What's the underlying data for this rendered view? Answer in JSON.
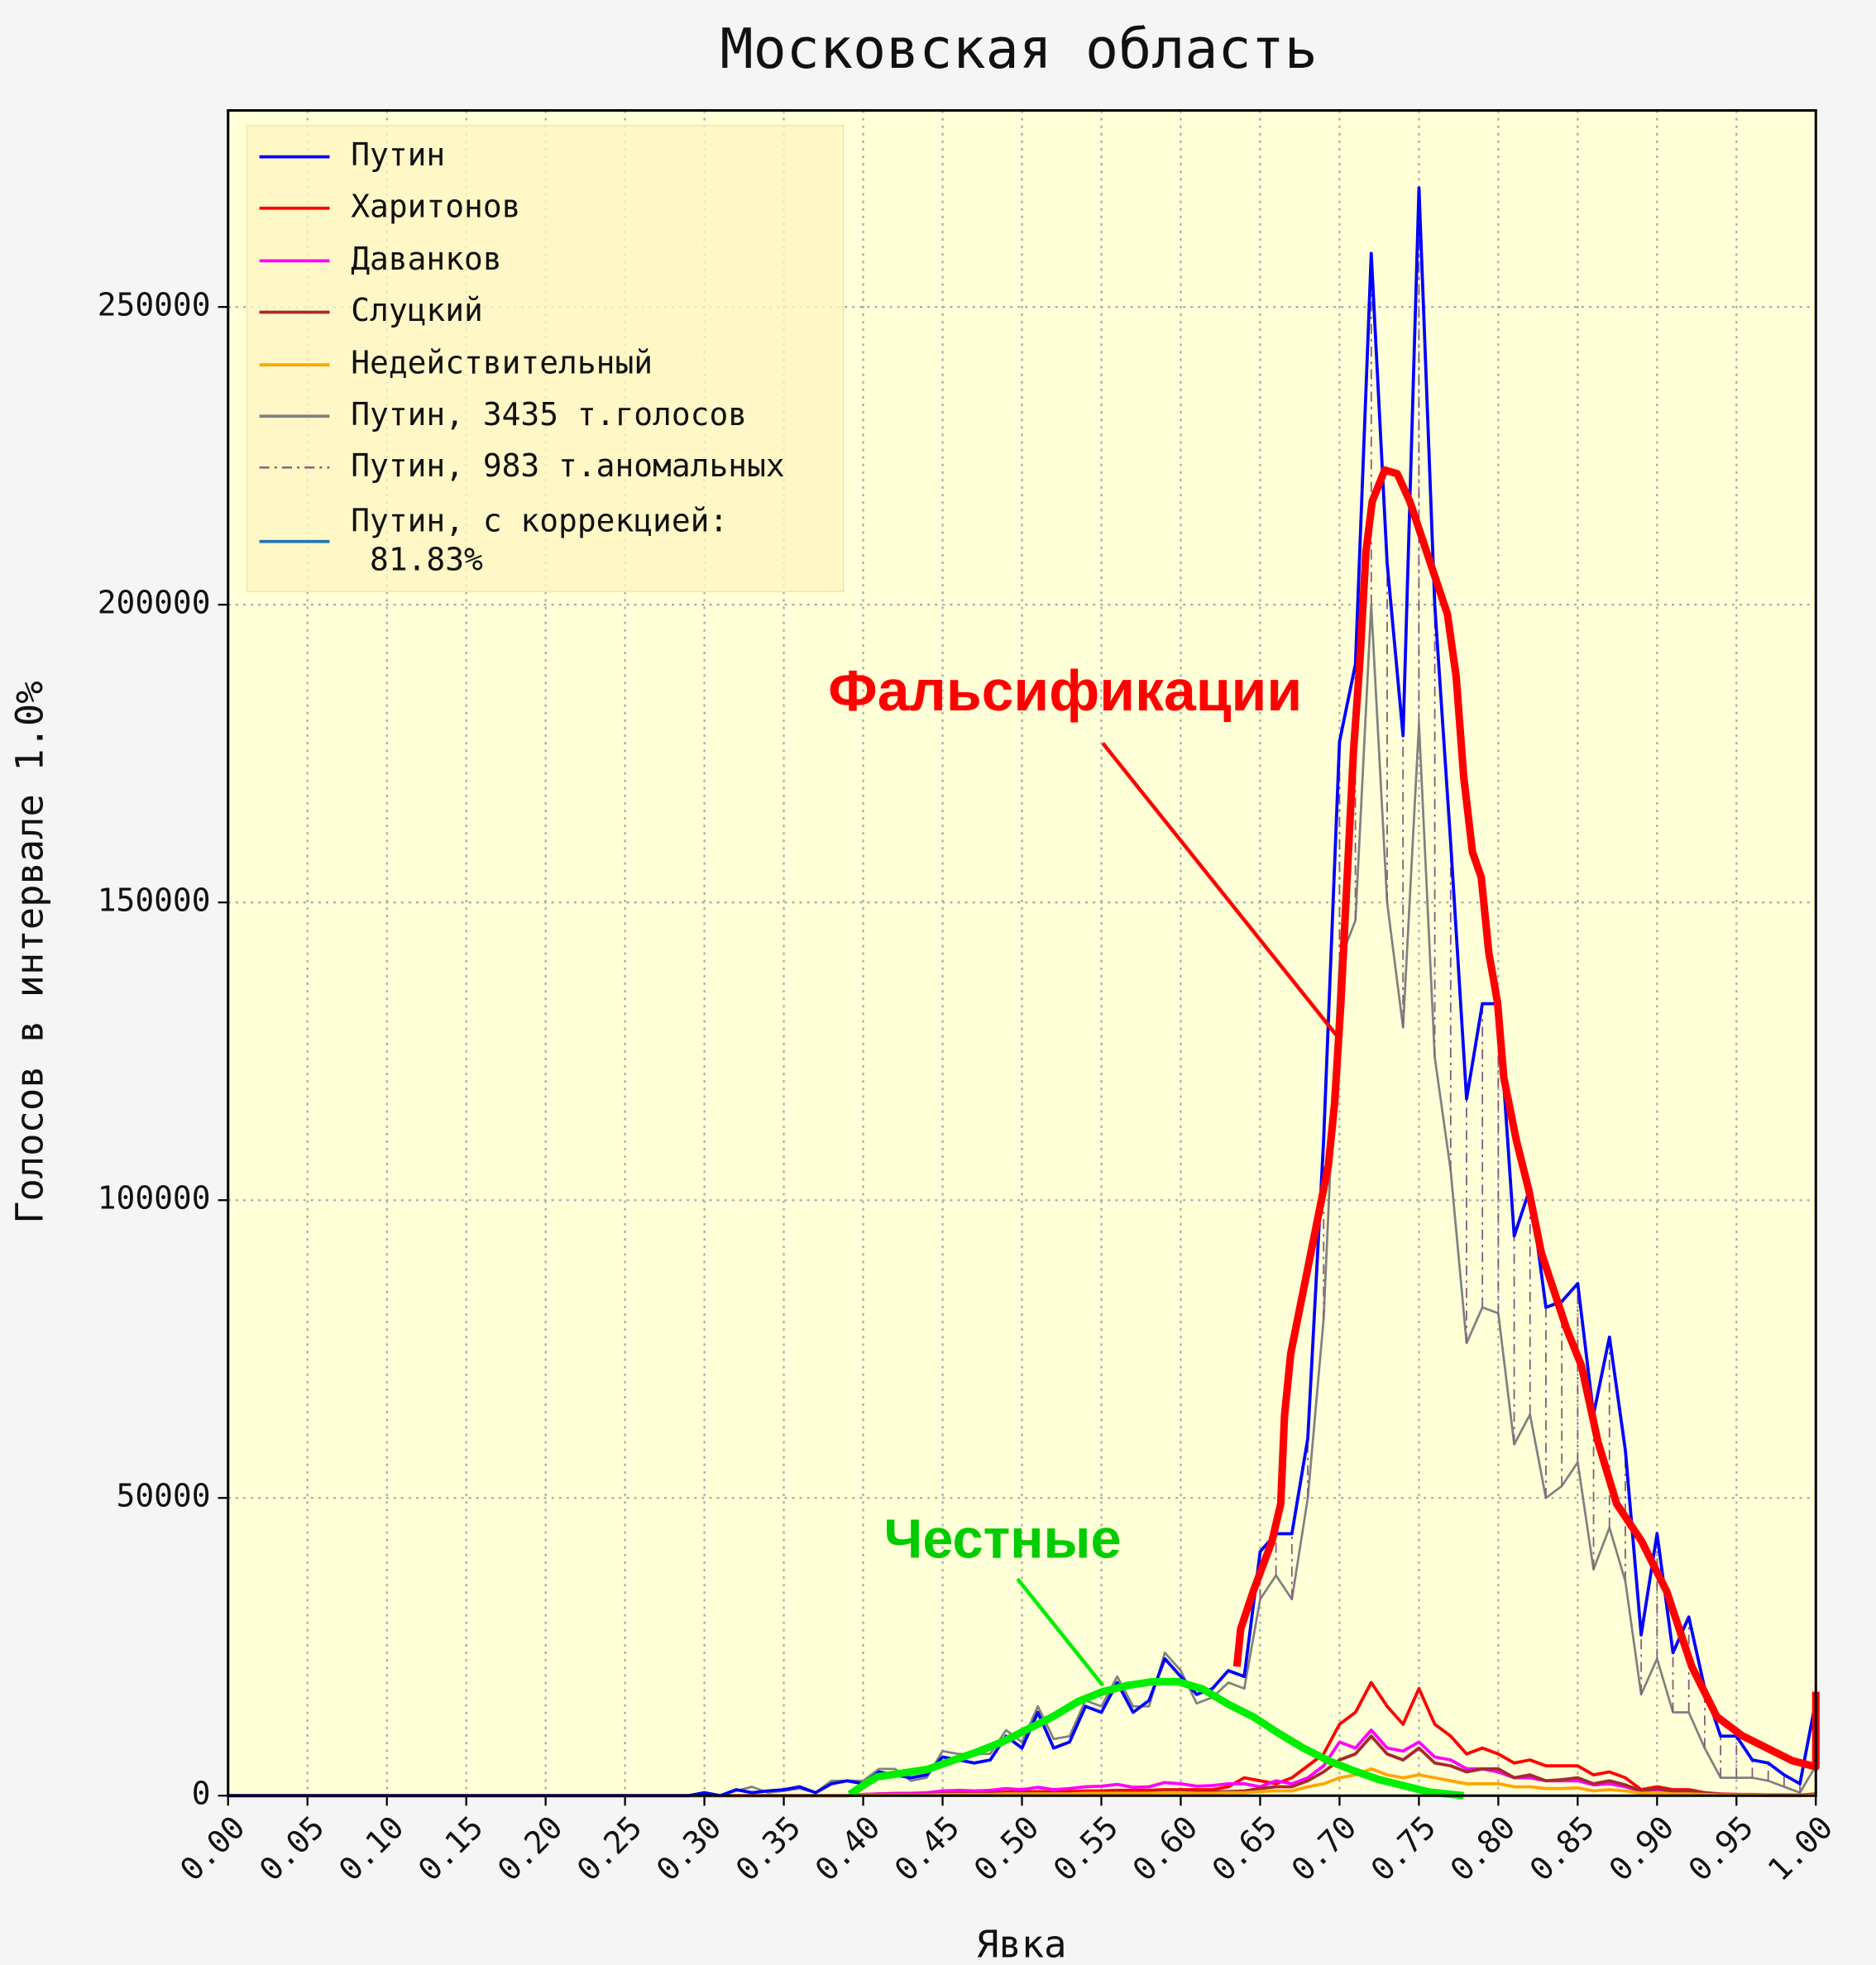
{
  "chart_data": {
    "type": "line",
    "title": "Московская область",
    "xlabel": "Явка",
    "ylabel": "Голосов в интервале 1.0%",
    "x": [
      0,
      0.29,
      0.3,
      0.31,
      0.32,
      0.33,
      0.34,
      0.35,
      0.36,
      0.37,
      0.38,
      0.39,
      0.4,
      0.41,
      0.42,
      0.43,
      0.44,
      0.45,
      0.46,
      0.47,
      0.48,
      0.49,
      0.5,
      0.51,
      0.52,
      0.53,
      0.54,
      0.55,
      0.56,
      0.57,
      0.58,
      0.59,
      0.6,
      0.61,
      0.62,
      0.63,
      0.64,
      0.65,
      0.66,
      0.67,
      0.68,
      0.69,
      0.7,
      0.71,
      0.72,
      0.73,
      0.74,
      0.75,
      0.76,
      0.77,
      0.78,
      0.79,
      0.8,
      0.81,
      0.82,
      0.83,
      0.84,
      0.85,
      0.86,
      0.87,
      0.88,
      0.89,
      0.9,
      0.91,
      0.92,
      0.93,
      0.94,
      0.95,
      0.96,
      0.97,
      0.98,
      0.99,
      1.0
    ],
    "series": [
      {
        "name": "Путин",
        "color": "#0000ff",
        "width": 2.5,
        "style": "solid",
        "values": [
          0,
          0,
          500,
          0,
          1000,
          500,
          800,
          1000,
          1500,
          500,
          2000,
          2500,
          2000,
          4000,
          3500,
          3000,
          3500,
          6500,
          6000,
          5500,
          6000,
          10000,
          8000,
          14000,
          8000,
          9000,
          15000,
          14000,
          19000,
          14000,
          16000,
          23000,
          20000,
          17000,
          18000,
          21000,
          20000,
          41000,
          44000,
          44000,
          60000,
          110000,
          177000,
          190000,
          259000,
          207000,
          178000,
          270000,
          200000,
          160000,
          117000,
          133000,
          133000,
          94000,
          102000,
          82000,
          83000,
          86000,
          64000,
          77000,
          58000,
          27000,
          44000,
          24000,
          30000,
          18000,
          10000,
          10000,
          6000,
          5500,
          3500,
          2000,
          16000
        ]
      },
      {
        "name": "Харитонов",
        "color": "#ff0000",
        "width": 2.5,
        "style": "solid",
        "values": [
          0,
          0,
          0,
          0,
          0,
          0,
          0,
          0,
          0,
          0,
          0,
          0,
          200,
          300,
          300,
          300,
          400,
          500,
          500,
          500,
          500,
          600,
          600,
          700,
          600,
          700,
          800,
          800,
          900,
          900,
          900,
          1000,
          1000,
          1000,
          1000,
          1500,
          3000,
          2500,
          2000,
          3000,
          5000,
          7000,
          12000,
          14000,
          19000,
          15000,
          12000,
          18000,
          12000,
          10000,
          7000,
          8000,
          7000,
          5500,
          6000,
          5000,
          5000,
          5000,
          3500,
          4000,
          3000,
          1000,
          1500,
          1000,
          1000,
          500,
          300,
          200,
          200,
          100,
          100,
          100,
          300
        ]
      },
      {
        "name": "Даванков",
        "color": "#ff00ff",
        "width": 2.5,
        "style": "solid",
        "values": [
          0,
          0,
          0,
          0,
          0,
          0,
          0,
          0,
          0,
          0,
          0,
          0,
          200,
          300,
          400,
          400,
          500,
          800,
          900,
          800,
          900,
          1200,
          1000,
          1400,
          1000,
          1200,
          1500,
          1600,
          1900,
          1400,
          1500,
          2200,
          2000,
          1600,
          1700,
          2000,
          2000,
          1500,
          2500,
          2000,
          3000,
          5000,
          9000,
          8000,
          11000,
          8000,
          7500,
          9000,
          6500,
          6000,
          4500,
          4500,
          4000,
          3000,
          3000,
          2500,
          2500,
          2500,
          1800,
          2000,
          1500,
          800,
          1000,
          600,
          600,
          400,
          200,
          200,
          100,
          100,
          100,
          0,
          200
        ]
      },
      {
        "name": "Слуцкий",
        "color": "#a52a2a",
        "width": 2.5,
        "style": "solid",
        "values": [
          0,
          0,
          0,
          0,
          0,
          0,
          0,
          0,
          0,
          0,
          0,
          0,
          100,
          200,
          200,
          200,
          200,
          300,
          300,
          300,
          300,
          400,
          400,
          500,
          400,
          400,
          500,
          500,
          600,
          500,
          500,
          700,
          700,
          600,
          600,
          700,
          800,
          1200,
          1500,
          1500,
          2500,
          4000,
          6000,
          7000,
          10000,
          7000,
          6000,
          8000,
          5500,
          5000,
          4000,
          4500,
          4500,
          3000,
          3500,
          2500,
          2700,
          3000,
          2000,
          2500,
          1800,
          800,
          1200,
          800,
          800,
          500,
          200,
          200,
          100,
          100,
          100,
          0,
          300
        ]
      },
      {
        "name": "Недействительный",
        "color": "#ffa500",
        "width": 2.5,
        "style": "solid",
        "values": [
          0,
          0,
          0,
          0,
          0,
          0,
          0,
          0,
          0,
          0,
          0,
          0,
          100,
          100,
          100,
          100,
          100,
          200,
          200,
          200,
          200,
          300,
          300,
          300,
          300,
          300,
          400,
          400,
          400,
          400,
          400,
          500,
          500,
          400,
          400,
          500,
          500,
          700,
          800,
          800,
          1500,
          2000,
          3000,
          3500,
          4500,
          3500,
          3000,
          3500,
          3000,
          2500,
          2000,
          2000,
          2000,
          1500,
          1500,
          1200,
          1200,
          1300,
          800,
          1000,
          800,
          400,
          500,
          300,
          300,
          200,
          100,
          100,
          100,
          0,
          0,
          0,
          100
        ]
      },
      {
        "name": "Путин, 3435 т.голосов",
        "color": "#808080",
        "width": 1.8,
        "style": "solid",
        "values": [
          0,
          0,
          300,
          0,
          800,
          1500,
          500,
          800,
          1200,
          500,
          2500,
          2500,
          2500,
          4500,
          4500,
          2500,
          3000,
          7500,
          7000,
          7000,
          7000,
          11000,
          9000,
          15000,
          9500,
          10000,
          16000,
          15000,
          20000,
          15000,
          15000,
          24000,
          21000,
          15500,
          16500,
          19000,
          18000,
          33000,
          37000,
          33000,
          50000,
          80000,
          140000,
          147000,
          200000,
          150000,
          129000,
          180000,
          124000,
          105000,
          76000,
          82000,
          81000,
          59000,
          64000,
          50000,
          52000,
          56000,
          38000,
          45000,
          36000,
          17000,
          23000,
          14000,
          14000,
          8000,
          3000,
          3000,
          3000,
          2500,
          1500,
          500,
          5000
        ]
      },
      {
        "name": "Путин, 983 т.аномальных",
        "color": "#8b5a83",
        "width": 1.2,
        "style": "dashdot",
        "values": [
          null,
          null,
          null,
          null,
          null,
          null,
          null,
          null,
          null,
          null,
          null,
          null,
          null,
          null,
          null,
          null,
          null,
          null,
          null,
          null,
          null,
          null,
          null,
          null,
          null,
          null,
          null,
          null,
          null,
          null,
          null,
          null,
          null,
          null,
          null,
          null,
          null,
          8000,
          7000,
          11000,
          10000,
          30000,
          37000,
          43000,
          59000,
          57000,
          49000,
          90000,
          76000,
          55000,
          41000,
          51000,
          52000,
          35000,
          38000,
          32000,
          31000,
          30000,
          26000,
          32000,
          22000,
          10000,
          21000,
          10000,
          16000,
          10000,
          7000,
          7000,
          3000,
          3000,
          2000,
          1500,
          11000
        ]
      },
      {
        "name": "Путин, с коррекцией:\n 81.83%",
        "color": "#1f77b4",
        "width": 2.5,
        "style": "solid"
      }
    ],
    "xlim": [
      0,
      1
    ],
    "ylim": [
      0,
      283000
    ],
    "xticks": [
      {
        "value": 0,
        "label": "0.00"
      },
      {
        "value": 0.05,
        "label": "0.05"
      },
      {
        "value": 0.1,
        "label": "0.10"
      },
      {
        "value": 0.15,
        "label": "0.15"
      },
      {
        "value": 0.2,
        "label": "0.20"
      },
      {
        "value": 0.25,
        "label": "0.25"
      },
      {
        "value": 0.3,
        "label": "0.30"
      },
      {
        "value": 0.35,
        "label": "0.35"
      },
      {
        "value": 0.4,
        "label": "0.40"
      },
      {
        "value": 0.45,
        "label": "0.45"
      },
      {
        "value": 0.5,
        "label": "0.50"
      },
      {
        "value": 0.55,
        "label": "0.55"
      },
      {
        "value": 0.6,
        "label": "0.60"
      },
      {
        "value": 0.65,
        "label": "0.65"
      },
      {
        "value": 0.7,
        "label": "0.70"
      },
      {
        "value": 0.75,
        "label": "0.75"
      },
      {
        "value": 0.8,
        "label": "0.80"
      },
      {
        "value": 0.85,
        "label": "0.85"
      },
      {
        "value": 0.9,
        "label": "0.90"
      },
      {
        "value": 0.95,
        "label": "0.95"
      },
      {
        "value": 1,
        "label": "1.00"
      }
    ],
    "yticks": [
      0,
      50000,
      100000,
      150000,
      200000,
      250000
    ],
    "grid": true,
    "legend": "upper left",
    "annotations": [
      "Фальсификации",
      "Честные"
    ]
  }
}
